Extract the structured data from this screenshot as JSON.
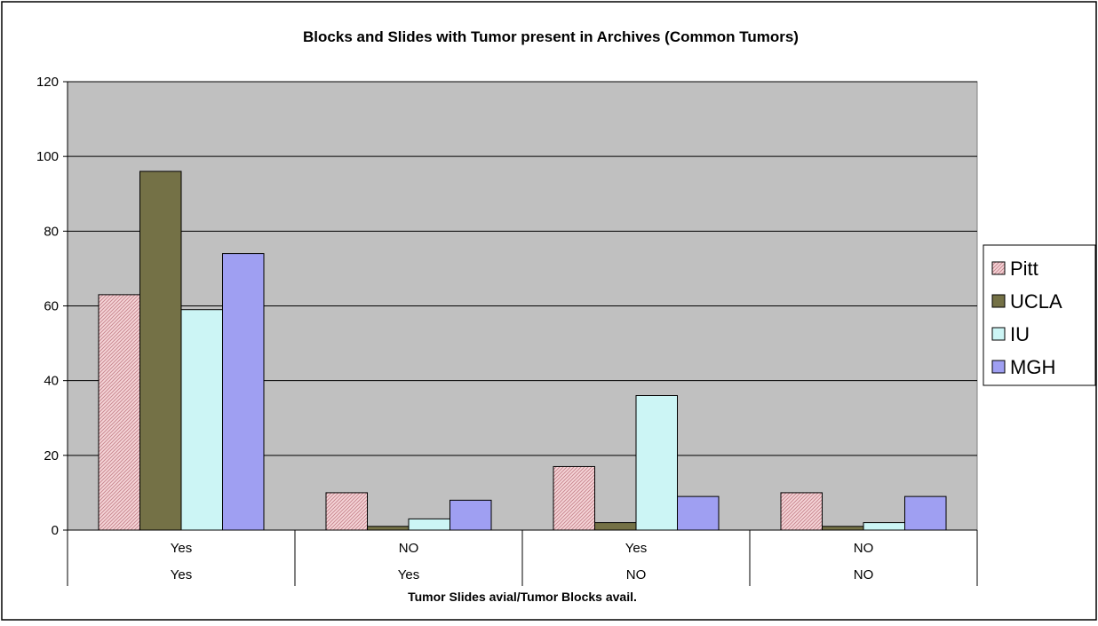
{
  "chart_data": {
    "type": "bar",
    "title": "Blocks and Slides with Tumor present in Archives (Common Tumors)",
    "xlabel": "Tumor Slides avial/Tumor Blocks avail.",
    "ylabel": "",
    "ylim": [
      0,
      120
    ],
    "yticks": [
      0,
      20,
      40,
      60,
      80,
      100,
      120
    ],
    "categories": [
      {
        "row1": "Yes",
        "row2": "Yes"
      },
      {
        "row1": "NO",
        "row2": "Yes"
      },
      {
        "row1": "Yes",
        "row2": "NO"
      },
      {
        "row1": "NO",
        "row2": "NO"
      }
    ],
    "series": [
      {
        "name": "Pitt",
        "values": [
          63,
          10,
          17,
          10
        ],
        "color": "#f2c8cc",
        "pattern": "hatch"
      },
      {
        "name": "UCLA",
        "values": [
          96,
          1,
          2,
          1
        ],
        "color": "#747146",
        "pattern": "solid"
      },
      {
        "name": "IU",
        "values": [
          59,
          3,
          36,
          2
        ],
        "color": "#ccf5f5",
        "pattern": "solid"
      },
      {
        "name": "MGH",
        "values": [
          74,
          8,
          9,
          9
        ],
        "color": "#9f9ff2",
        "pattern": "solid"
      }
    ],
    "grid": true,
    "plot_background": "#c0c0c0",
    "legend_position": "right"
  }
}
